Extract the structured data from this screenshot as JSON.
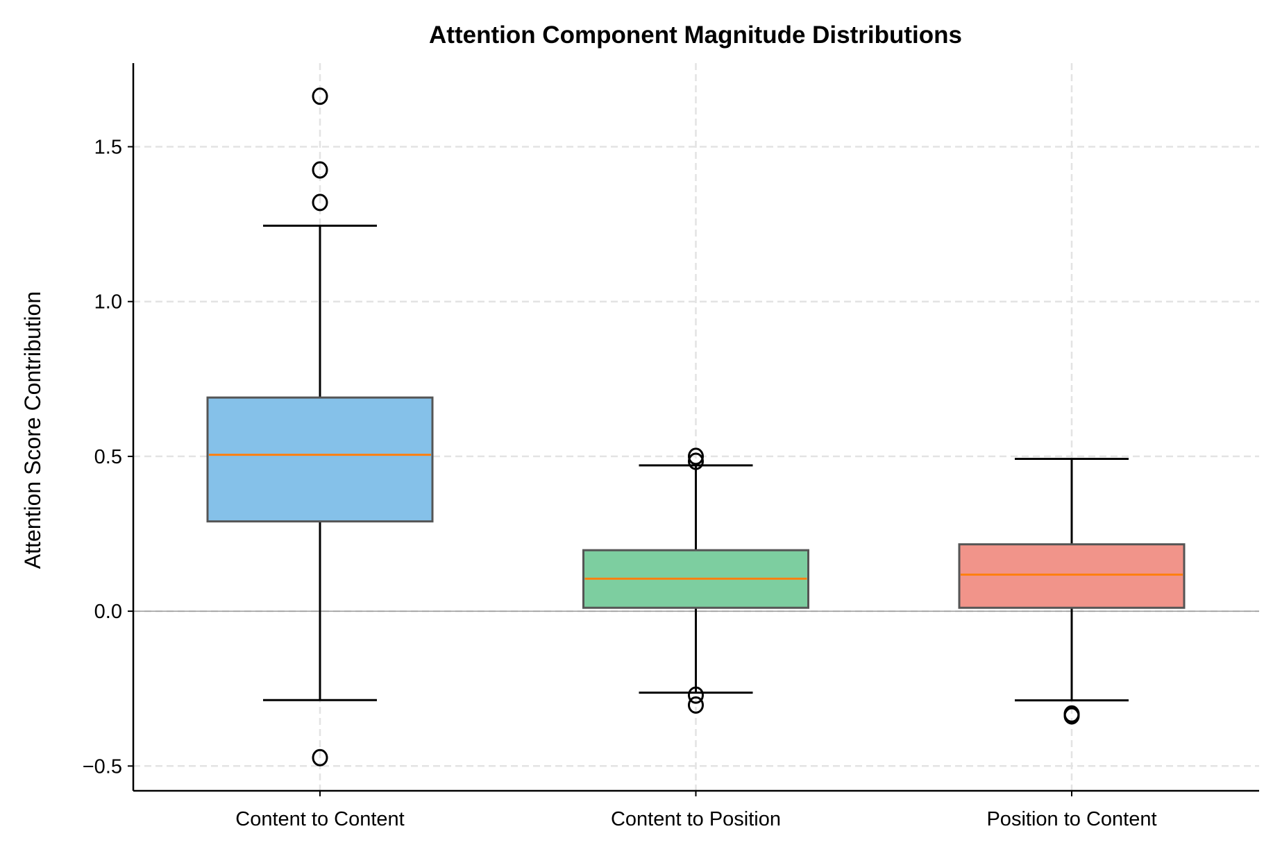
{
  "chart_data": {
    "type": "box",
    "title": "Attention Component Magnitude Distributions",
    "xlabel": "",
    "ylabel": "Attention Score Contribution",
    "ylim": [
      -0.58,
      1.77
    ],
    "yticks": [
      -0.5,
      0.0,
      0.5,
      1.0,
      1.5
    ],
    "ytick_labels": [
      "−0.5",
      "0.0",
      "0.5",
      "1.0",
      "1.5"
    ],
    "grid": true,
    "zero_line": true,
    "median_color": "#ff7f0e",
    "categories": [
      "Content to Content",
      "Content to Position",
      "Position to Content"
    ],
    "boxes": [
      {
        "q1": 0.29,
        "median": 0.505,
        "q3": 0.69,
        "whisker_low": -0.287,
        "whisker_high": 1.245,
        "outliers": [
          1.663,
          1.425,
          1.32,
          -0.473
        ],
        "color": "#85c1e9"
      },
      {
        "q1": 0.011,
        "median": 0.105,
        "q3": 0.197,
        "whisker_low": -0.263,
        "whisker_high": 0.471,
        "outliers": [
          0.5,
          0.484,
          -0.271,
          -0.303
        ],
        "color": "#7dcea0"
      },
      {
        "q1": 0.011,
        "median": 0.118,
        "q3": 0.216,
        "whisker_low": -0.288,
        "whisker_high": 0.492,
        "outliers": [
          -0.332,
          -0.338
        ],
        "color": "#f1948a"
      }
    ]
  }
}
